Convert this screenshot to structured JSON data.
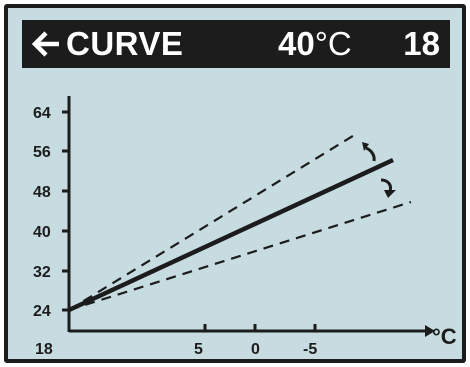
{
  "header": {
    "title": "CURVE",
    "temperature_value": "40",
    "temperature_unit": "°C",
    "curve_number": "18",
    "back_icon": "left-arrow-icon"
  },
  "graph": {
    "y_ticks": [
      "64",
      "56",
      "48",
      "40",
      "32",
      "24"
    ],
    "x_ticks": [
      "18",
      "5",
      "0",
      "-5"
    ],
    "x_unit": "°C",
    "adjust_up_icon": "curved-arrow-up-icon",
    "adjust_down_icon": "curved-arrow-down-icon"
  },
  "colors": {
    "background": "#c7dce1",
    "foreground": "#1c1c1c",
    "header_text": "#ffffff"
  }
}
